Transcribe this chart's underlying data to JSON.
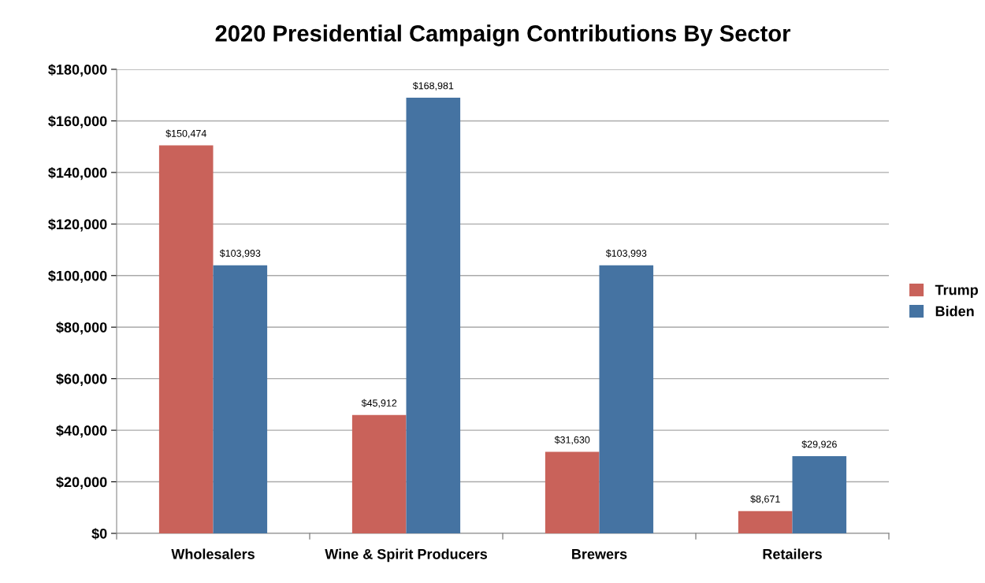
{
  "chart_data": {
    "type": "bar",
    "title": "2020 Presidential Campaign Contributions By Sector",
    "categories": [
      "Wholesalers",
      "Wine & Spirit Producers",
      "Brewers",
      "Retailers"
    ],
    "series": [
      {
        "name": "Trump",
        "color": "#c9625a",
        "values": [
          150474,
          45912,
          31630,
          8671
        ],
        "value_labels": [
          "$150,474",
          "$45,912",
          "$31,630",
          "$8,671"
        ]
      },
      {
        "name": "Biden",
        "color": "#4573a2",
        "values": [
          103993,
          168981,
          103993,
          29926
        ],
        "value_labels": [
          "$103,993",
          "$168,981",
          "$103,993",
          "$29,926"
        ]
      }
    ],
    "ylim": [
      0,
      180000
    ],
    "yticks": [
      {
        "value": 0,
        "label": "$0"
      },
      {
        "value": 20000,
        "label": "$20,000"
      },
      {
        "value": 40000,
        "label": "$40,000"
      },
      {
        "value": 60000,
        "label": "$60,000"
      },
      {
        "value": 80000,
        "label": "$80,000"
      },
      {
        "value": 100000,
        "label": "$100,000"
      },
      {
        "value": 120000,
        "label": "$120,000"
      },
      {
        "value": 140000,
        "label": "$140,000"
      },
      {
        "value": 160000,
        "label": "$160,000"
      },
      {
        "value": 180000,
        "label": "$180,000"
      }
    ],
    "grid": "y",
    "legend": "right"
  }
}
